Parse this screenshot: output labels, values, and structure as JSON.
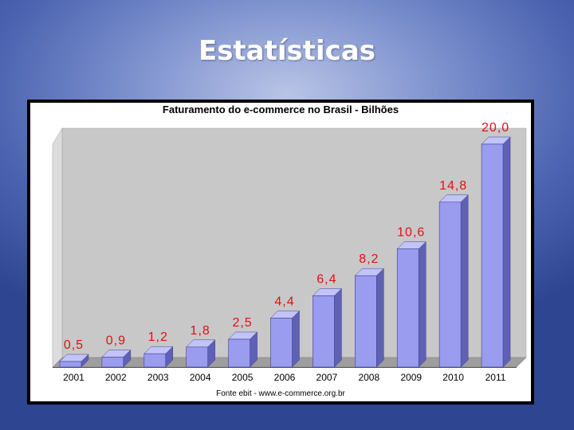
{
  "slide": {
    "title": "Estatísticas"
  },
  "colors": {
    "bar_front": "#9a9cf0",
    "bar_side": "#5f61b4",
    "bar_top": "#c2c4f8",
    "value_label": "#e01010",
    "wall_back": "#c8c8c8",
    "wall_side": "#dcdcdc",
    "floor": "#9e9e9e"
  },
  "chart_data": {
    "type": "bar",
    "title": "Faturamento do e-commerce no Brasil - Bilhões",
    "categories": [
      "2001",
      "2002",
      "2003",
      "2004",
      "2005",
      "2006",
      "2007",
      "2008",
      "2009",
      "2010",
      "2011"
    ],
    "values": [
      0.5,
      0.9,
      1.2,
      1.8,
      2.5,
      4.4,
      6.4,
      8.2,
      10.6,
      14.8,
      20.0
    ],
    "value_labels": [
      "0,5",
      "0,9",
      "1,2",
      "1,8",
      "2,5",
      "4,4",
      "6,4",
      "8,2",
      "10,6",
      "14,8",
      "20,0"
    ],
    "ylim": [
      0,
      20
    ],
    "grid": false,
    "legend": "none",
    "source": "Fonte ebit - www.e-commerce.org.br"
  }
}
